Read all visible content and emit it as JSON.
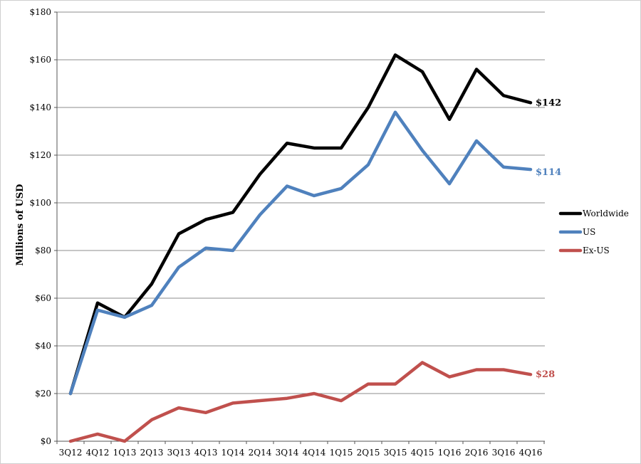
{
  "chart_data": {
    "type": "line",
    "ylabel": "Millions of USD",
    "ylim": [
      0,
      180
    ],
    "y_tick_step": 20,
    "y_tick_prefix": "$",
    "grid": "horizontal",
    "legend_position": "right",
    "categories": [
      "3Q12",
      "4Q12",
      "1Q13",
      "2Q13",
      "3Q13",
      "4Q13",
      "1Q14",
      "2Q14",
      "3Q14",
      "4Q14",
      "1Q15",
      "2Q15",
      "3Q15",
      "4Q15",
      "1Q16",
      "2Q16",
      "3Q16",
      "4Q16"
    ],
    "series": [
      {
        "name": "Worldwide",
        "color": "#000000",
        "end_label": "$142",
        "values": [
          20,
          58,
          52,
          66,
          87,
          93,
          96,
          112,
          125,
          123,
          123,
          140,
          162,
          155,
          135,
          156,
          145,
          142
        ]
      },
      {
        "name": "US",
        "color": "#4f81bd",
        "end_label": "$114",
        "values": [
          20,
          55,
          52,
          57,
          73,
          81,
          80,
          95,
          107,
          103,
          106,
          116,
          138,
          122,
          108,
          126,
          115,
          114
        ]
      },
      {
        "name": "Ex-US",
        "color": "#c0504d",
        "end_label": "$28",
        "values": [
          0,
          3,
          0,
          9,
          14,
          12,
          16,
          17,
          18,
          20,
          17,
          24,
          24,
          33,
          27,
          30,
          30,
          28
        ]
      }
    ]
  }
}
